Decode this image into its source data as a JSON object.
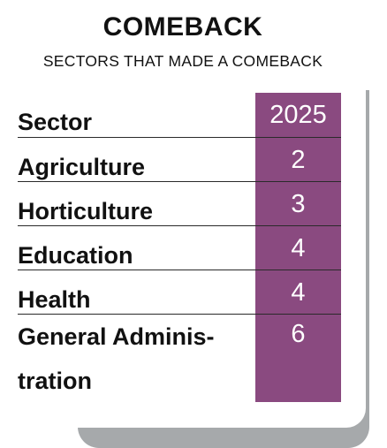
{
  "title": "COMEBACK",
  "subtitle": "SECTORS THAT MADE A COMEBACK",
  "table": {
    "headers": [
      "Sector",
      "2025"
    ],
    "rows": [
      {
        "sector": "Agriculture",
        "value": "2"
      },
      {
        "sector": "Horticulture",
        "value": "3"
      },
      {
        "sector": "Education",
        "value": "4"
      },
      {
        "sector": "Health",
        "value": "4"
      },
      {
        "sector": "General Adminis-tration",
        "value": "6"
      }
    ]
  },
  "colors": {
    "accent": "#8a4a80",
    "shadow": "#a6a9ab",
    "text": "#111111",
    "value_text": "#ffffff"
  }
}
